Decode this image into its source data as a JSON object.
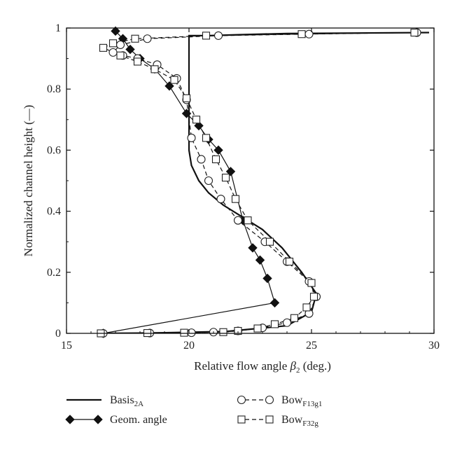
{
  "chart_data": {
    "type": "line",
    "xlabel_main": "Relative flow angle ",
    "xlabel_symbol": "β",
    "xlabel_sub": "2",
    "xlabel_tail": " (deg.)",
    "ylabel": "Normalized channel height (—)",
    "xlim": [
      15,
      30
    ],
    "ylim": [
      0,
      1
    ],
    "xticks": [
      "15",
      "20",
      "25",
      "30"
    ],
    "yticks": [
      "0",
      "0.2",
      "0.4",
      "0.6",
      "0.8",
      "1"
    ],
    "grid": false,
    "legend_position": "bottom",
    "series": [
      {
        "name": "Basis",
        "name_sub": "2A",
        "style": "solid",
        "marker": "none",
        "x": [
          29.8,
          24.0,
          22.0,
          20.8,
          20.2,
          20.0,
          20.0,
          20.1,
          20.4,
          20.8,
          21.4,
          22.2,
          23.0,
          23.8,
          24.6,
          25.2,
          25.0,
          24.0,
          21.5,
          19.0,
          18.0,
          16.5
        ],
        "y": [
          0.985,
          0.982,
          0.978,
          0.975,
          0.975,
          0.975,
          0.6,
          0.55,
          0.5,
          0.46,
          0.42,
          0.38,
          0.34,
          0.28,
          0.2,
          0.13,
          0.07,
          0.025,
          0.006,
          0.002,
          0.001,
          0.0
        ]
      },
      {
        "name": "Geom. angle",
        "style": "solid",
        "marker": "diamond",
        "x": [
          17.0,
          17.3,
          17.6,
          18.0,
          18.6,
          19.2,
          19.9,
          20.4,
          20.8,
          21.2,
          21.7,
          22.2,
          22.6,
          22.9,
          23.2,
          23.5,
          16.5
        ],
        "y": [
          0.99,
          0.965,
          0.93,
          0.9,
          0.866,
          0.81,
          0.72,
          0.68,
          0.635,
          0.6,
          0.53,
          0.37,
          0.28,
          0.24,
          0.18,
          0.1,
          0.0
        ]
      },
      {
        "name": "Bow",
        "name_sub": "F13g1",
        "style": "dashed",
        "marker": "circle",
        "x": [
          29.3,
          24.9,
          21.2,
          18.3,
          17.2,
          16.9,
          17.3,
          17.9,
          18.7,
          19.5,
          19.9,
          20.1,
          20.5,
          20.8,
          21.3,
          22.0,
          23.1,
          24.0,
          24.9,
          25.2,
          24.9,
          24.0,
          23.0,
          22.0,
          21.0,
          20.1,
          18.4,
          16.5
        ],
        "y": [
          0.985,
          0.98,
          0.975,
          0.965,
          0.945,
          0.92,
          0.91,
          0.9,
          0.88,
          0.835,
          0.765,
          0.64,
          0.57,
          0.5,
          0.44,
          0.37,
          0.3,
          0.235,
          0.17,
          0.12,
          0.065,
          0.035,
          0.018,
          0.008,
          0.004,
          0.002,
          0.001,
          0.0
        ]
      },
      {
        "name": "Bow",
        "name_sub": "F32g",
        "style": "dashed",
        "marker": "square",
        "x": [
          29.2,
          24.6,
          20.7,
          17.8,
          16.9,
          16.5,
          17.2,
          17.9,
          18.6,
          19.4,
          19.9,
          20.3,
          20.7,
          21.1,
          21.5,
          21.9,
          22.4,
          23.3,
          24.1,
          25.0,
          25.1,
          24.8,
          24.3,
          23.5,
          22.8,
          22.0,
          21.4,
          19.8,
          18.3,
          16.4
        ],
        "y": [
          0.985,
          0.98,
          0.975,
          0.965,
          0.95,
          0.935,
          0.91,
          0.89,
          0.865,
          0.83,
          0.77,
          0.7,
          0.64,
          0.57,
          0.51,
          0.44,
          0.37,
          0.3,
          0.235,
          0.165,
          0.12,
          0.085,
          0.05,
          0.03,
          0.016,
          0.008,
          0.004,
          0.002,
          0.001,
          0.0
        ]
      }
    ]
  }
}
